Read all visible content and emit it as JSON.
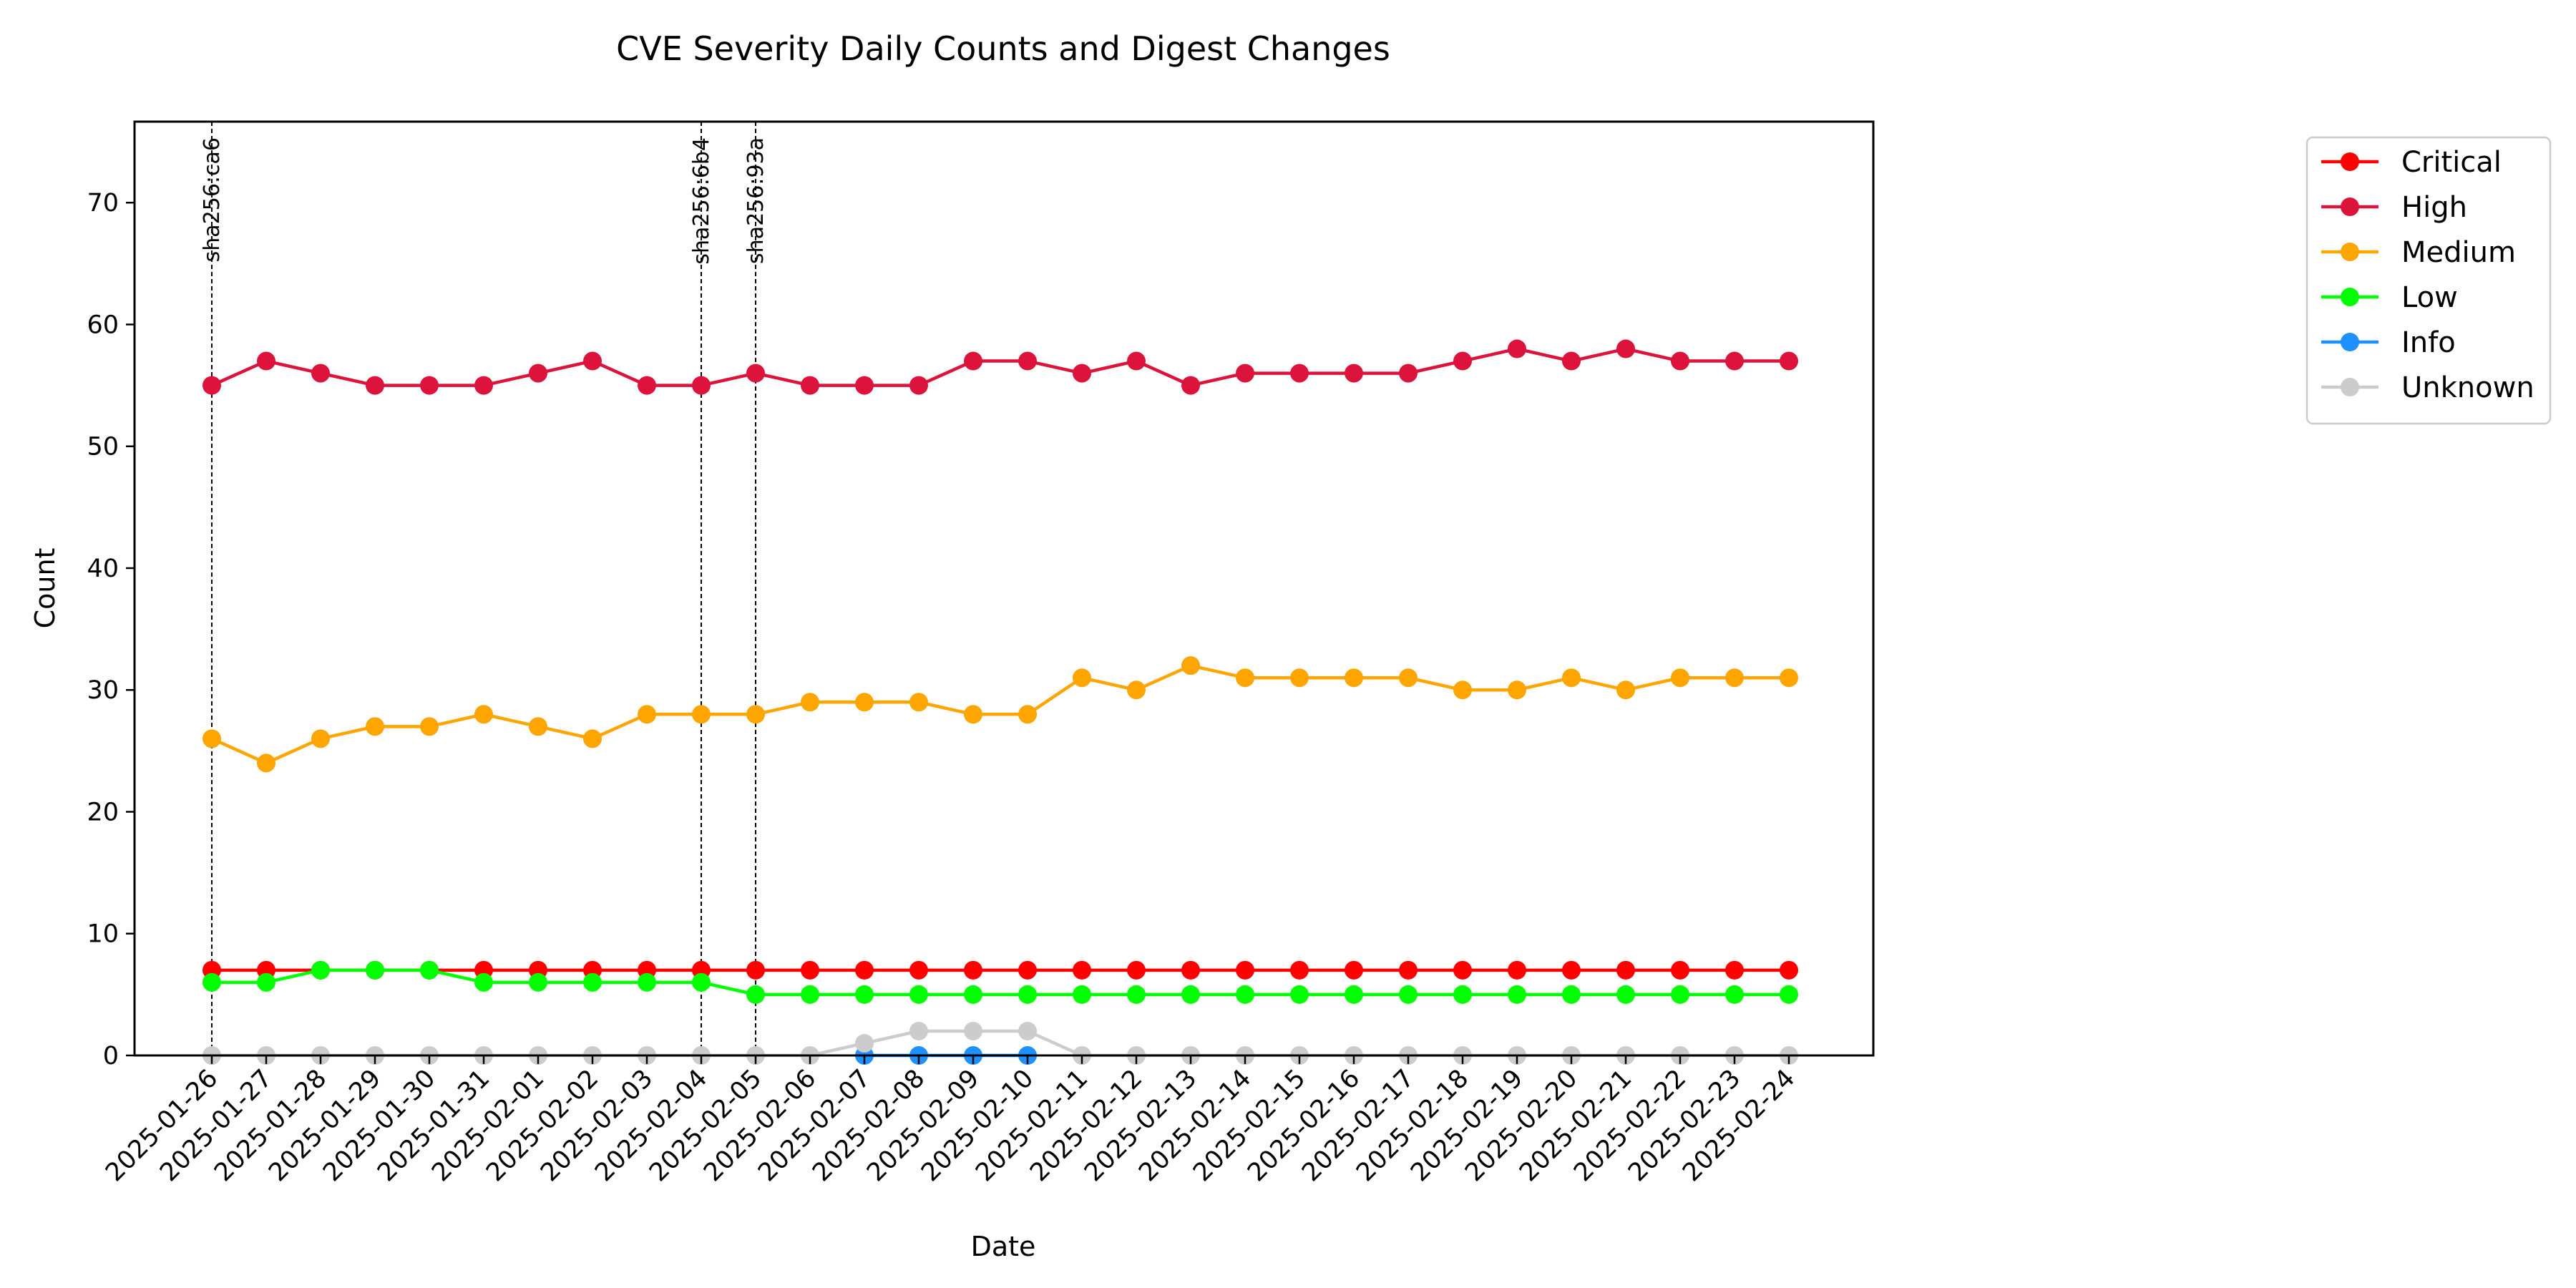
{
  "chart_data": {
    "type": "line",
    "title": "CVE Severity Daily Counts and Digest Changes",
    "xlabel": "Date",
    "ylabel": "Count",
    "ylim": [
      0,
      76.65
    ],
    "yticks": [
      "0",
      "10",
      "20",
      "30",
      "40",
      "50",
      "60",
      "70"
    ],
    "grid": false,
    "legend_position": "top-right, outside plot",
    "x": [
      "2025-01-26",
      "2025-01-27",
      "2025-01-28",
      "2025-01-29",
      "2025-01-30",
      "2025-01-31",
      "2025-02-01",
      "2025-02-02",
      "2025-02-03",
      "2025-02-04",
      "2025-02-05",
      "2025-02-06",
      "2025-02-07",
      "2025-02-08",
      "2025-02-09",
      "2025-02-10",
      "2025-02-11",
      "2025-02-12",
      "2025-02-13",
      "2025-02-14",
      "2025-02-15",
      "2025-02-16",
      "2025-02-17",
      "2025-02-18",
      "2025-02-19",
      "2025-02-20",
      "2025-02-21",
      "2025-02-22",
      "2025-02-23",
      "2025-02-24"
    ],
    "series": [
      {
        "name": "Critical",
        "color": "#ff0000",
        "values": [
          7,
          7,
          7,
          7,
          7,
          7,
          7,
          7,
          7,
          7,
          7,
          7,
          7,
          7,
          7,
          7,
          7,
          7,
          7,
          7,
          7,
          7,
          7,
          7,
          7,
          7,
          7,
          7,
          7,
          7
        ]
      },
      {
        "name": "High",
        "color": "#dc143c",
        "values": [
          55,
          57,
          56,
          55,
          55,
          55,
          56,
          57,
          55,
          55,
          56,
          55,
          55,
          55,
          57,
          57,
          56,
          57,
          55,
          56,
          56,
          56,
          56,
          57,
          58,
          57,
          58,
          57,
          57,
          57
        ]
      },
      {
        "name": "Medium",
        "color": "#ffa500",
        "values": [
          26,
          24,
          26,
          27,
          27,
          28,
          27,
          26,
          28,
          28,
          28,
          29,
          29,
          29,
          28,
          28,
          31,
          30,
          32,
          31,
          31,
          31,
          31,
          30,
          30,
          31,
          30,
          31,
          31,
          31
        ]
      },
      {
        "name": "Low",
        "color": "#00ff00",
        "values": [
          6,
          6,
          7,
          7,
          7,
          6,
          6,
          6,
          6,
          6,
          5,
          5,
          5,
          5,
          5,
          5,
          5,
          5,
          5,
          5,
          5,
          5,
          5,
          5,
          5,
          5,
          5,
          5,
          5,
          5
        ]
      },
      {
        "name": "Info",
        "color": "#1e90ff",
        "values": [
          null,
          null,
          null,
          null,
          null,
          null,
          null,
          null,
          null,
          null,
          null,
          null,
          0,
          0,
          0,
          0,
          null,
          null,
          null,
          null,
          null,
          null,
          null,
          null,
          null,
          null,
          null,
          null,
          null,
          null
        ]
      },
      {
        "name": "Unknown",
        "color": "#cccccc",
        "values": [
          0,
          0,
          0,
          0,
          0,
          0,
          0,
          0,
          0,
          0,
          0,
          0,
          1,
          2,
          2,
          2,
          0,
          0,
          0,
          0,
          0,
          0,
          0,
          0,
          0,
          0,
          0,
          0,
          0,
          0
        ]
      }
    ],
    "annotations": [
      {
        "x": "2025-01-26",
        "label": "sha256:ca6"
      },
      {
        "x": "2025-02-04",
        "label": "sha256:6b4"
      },
      {
        "x": "2025-02-05",
        "label": "sha256:93a"
      }
    ]
  }
}
